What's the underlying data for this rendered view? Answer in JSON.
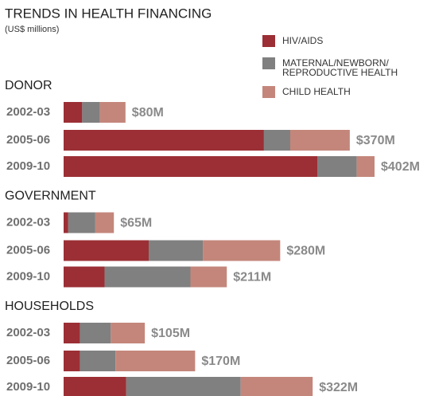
{
  "chart_data": {
    "type": "bar",
    "orientation": "horizontal",
    "stacked": true,
    "title": "TRENDS IN HEALTH FINANCING",
    "subtitle": "(US$ millions)",
    "groups": [
      {
        "name": "DONOR",
        "categories": [
          "2002-03",
          "2005-06",
          "2009-10"
        ],
        "value_labels": [
          "$80M",
          "$370M",
          "$402M"
        ]
      },
      {
        "name": "GOVERNMENT",
        "categories": [
          "2002-03",
          "2005-06",
          "2009-10"
        ],
        "value_labels": [
          "$65M",
          "$280M",
          "$211M"
        ]
      },
      {
        "name": "HOUSEHOLDS",
        "categories": [
          "2002-03",
          "2005-06",
          "2009-10"
        ],
        "value_labels": [
          "$105M",
          "$170M",
          "$322M"
        ]
      }
    ],
    "series": [
      {
        "name": "HIV/AIDS",
        "color": "#9b2f35",
        "values": [
          [
            24,
            259,
            328
          ],
          [
            6,
            110,
            53
          ],
          [
            21,
            21,
            81
          ]
        ]
      },
      {
        "name": "MATERNAL/NEWBORN/ REPRODUCTIVE HEALTH",
        "color": "#808080",
        "values": [
          [
            23,
            34,
            51
          ],
          [
            35,
            70,
            111
          ],
          [
            40,
            46,
            148
          ]
        ]
      },
      {
        "name": "CHILD HEALTH",
        "color": "#c4867b",
        "values": [
          [
            33,
            77,
            23
          ],
          [
            24,
            100,
            47
          ],
          [
            44,
            103,
            93
          ]
        ]
      }
    ]
  }
}
